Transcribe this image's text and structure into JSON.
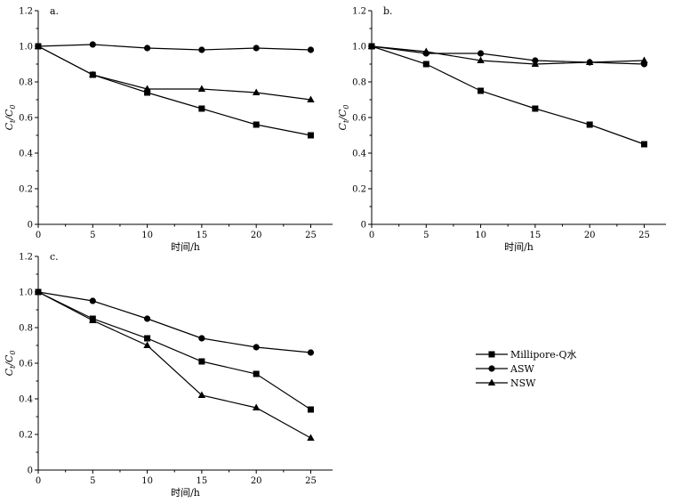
{
  "legend": {
    "items": [
      {
        "label": "Millipore-Q水",
        "marker": "square"
      },
      {
        "label": "ASW",
        "marker": "circle"
      },
      {
        "label": "NSW",
        "marker": "triangle"
      }
    ]
  },
  "chart_data": [
    {
      "type": "line",
      "panel_label": "a.",
      "xlabel": "时间/h",
      "ylabel": {
        "main": "C",
        "sub1": "t",
        "sep": "/C",
        "sub2": "0"
      },
      "xlim": [
        0,
        27
      ],
      "ylim": [
        0,
        1.2
      ],
      "xticks": [
        "0",
        "5",
        "10",
        "15",
        "20",
        "25"
      ],
      "yticks": [
        "0",
        "0.2",
        "0.4",
        "0.6",
        "0.8",
        "1.0",
        "1.2"
      ],
      "x": [
        0,
        5,
        10,
        15,
        20,
        25
      ],
      "series": [
        {
          "name": "Millipore-Q水",
          "marker": "square",
          "values": [
            1.0,
            0.84,
            0.74,
            0.65,
            0.56,
            0.5
          ]
        },
        {
          "name": "ASW",
          "marker": "circle",
          "values": [
            1.0,
            1.01,
            0.99,
            0.98,
            0.99,
            0.98
          ]
        },
        {
          "name": "NSW",
          "marker": "triangle",
          "values": [
            1.0,
            0.84,
            0.76,
            0.76,
            0.74,
            0.7
          ]
        }
      ]
    },
    {
      "type": "line",
      "panel_label": "b.",
      "xlabel": "时间/h",
      "ylabel": {
        "main": "C",
        "sub1": "t",
        "sep": "/C",
        "sub2": "0"
      },
      "xlim": [
        0,
        27
      ],
      "ylim": [
        0,
        1.2
      ],
      "xticks": [
        "0",
        "5",
        "10",
        "15",
        "20",
        "25"
      ],
      "yticks": [
        "0",
        "0.2",
        "0.4",
        "0.6",
        "0.8",
        "1.0",
        "1.2"
      ],
      "x": [
        0,
        5,
        10,
        15,
        20,
        25
      ],
      "series": [
        {
          "name": "Millipore-Q水",
          "marker": "square",
          "values": [
            1.0,
            0.9,
            0.75,
            0.65,
            0.56,
            0.45
          ]
        },
        {
          "name": "ASW",
          "marker": "circle",
          "values": [
            1.0,
            0.96,
            0.96,
            0.92,
            0.91,
            0.9
          ]
        },
        {
          "name": "NSW",
          "marker": "triangle",
          "values": [
            1.0,
            0.97,
            0.92,
            0.9,
            0.91,
            0.92
          ]
        }
      ]
    },
    {
      "type": "line",
      "panel_label": "c.",
      "xlabel": "时间/h",
      "ylabel": {
        "main": "C",
        "sub1": "t",
        "sep": "/C",
        "sub2": "0"
      },
      "xlim": [
        0,
        27
      ],
      "ylim": [
        0,
        1.2
      ],
      "xticks": [
        "0",
        "5",
        "10",
        "15",
        "20",
        "25"
      ],
      "yticks": [
        "0",
        "0.2",
        "0.4",
        "0.6",
        "0.8",
        "1.0",
        "1.2"
      ],
      "x": [
        0,
        5,
        10,
        15,
        20,
        25
      ],
      "series": [
        {
          "name": "Millipore-Q水",
          "marker": "square",
          "values": [
            1.0,
            0.85,
            0.74,
            0.61,
            0.54,
            0.34
          ]
        },
        {
          "name": "ASW",
          "marker": "circle",
          "values": [
            1.0,
            0.95,
            0.85,
            0.74,
            0.69,
            0.66
          ]
        },
        {
          "name": "NSW",
          "marker": "triangle",
          "values": [
            1.0,
            0.84,
            0.7,
            0.42,
            0.35,
            0.18
          ]
        }
      ]
    }
  ]
}
